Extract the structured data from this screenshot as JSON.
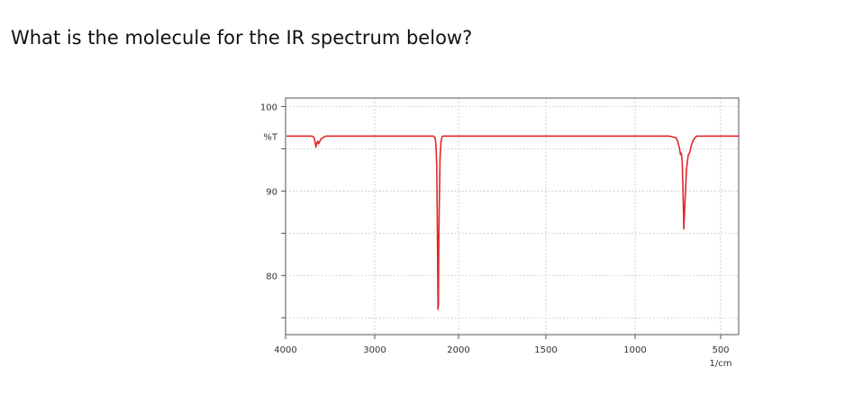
{
  "question": "What is the molecule for the IR spectrum below?",
  "chart_data": {
    "type": "line",
    "title": "",
    "xlabel": "1/cm",
    "ylabel": "%T",
    "x_ticks": [
      {
        "value": 4000,
        "label": "4000"
      },
      {
        "value": 3000,
        "label": "3000"
      },
      {
        "value": 2000,
        "label": "2000"
      },
      {
        "value": 1500,
        "label": "1500"
      },
      {
        "value": 1000,
        "label": "1000"
      },
      {
        "value": 500,
        "label": "500"
      }
    ],
    "y_ticks": [
      {
        "value": 100,
        "label": "100"
      },
      {
        "value": 90,
        "label": "90"
      },
      {
        "value": 80,
        "label": "80"
      }
    ],
    "xlim": [
      4000,
      400
    ],
    "ylim": [
      73,
      101
    ],
    "grid": true,
    "line_color": "#e0282a",
    "series": [
      {
        "x": [
          3990,
          3800,
          3700,
          3680,
          3670,
          3660,
          3650,
          3640,
          3630,
          3600,
          3550,
          3400,
          3200,
          3000,
          2800,
          2600,
          2400,
          2300,
          2280,
          2270,
          2260,
          2255,
          2250,
          2245,
          2240,
          2235,
          2230,
          2220,
          2210,
          2200,
          2190,
          2150,
          2100,
          2000,
          1800,
          1600,
          1400,
          1200,
          1000,
          900,
          800,
          760,
          750,
          740,
          735,
          730,
          725,
          720,
          715,
          710,
          700,
          690,
          680,
          670,
          660,
          650,
          640,
          600,
          550,
          500,
          450,
          400
        ],
        "y": [
          96.5,
          96.5,
          96.5,
          96.3,
          95.8,
          95.2,
          95.6,
          95.9,
          95.6,
          96.2,
          96.5,
          96.5,
          96.5,
          96.5,
          96.5,
          96.5,
          96.5,
          96.5,
          96.3,
          95.5,
          93,
          88,
          82,
          76,
          76.5,
          84,
          88,
          94,
          95.8,
          96.3,
          96.5,
          96.5,
          96.5,
          96.5,
          96.5,
          96.5,
          96.5,
          96.5,
          96.5,
          96.5,
          96.5,
          96.3,
          95.8,
          95,
          94.3,
          94.5,
          93.5,
          90,
          85.5,
          88,
          92.5,
          94.2,
          94.6,
          95.5,
          96,
          96.3,
          96.5,
          96.5,
          96.5,
          96.5,
          96.5,
          96.5
        ]
      }
    ]
  }
}
